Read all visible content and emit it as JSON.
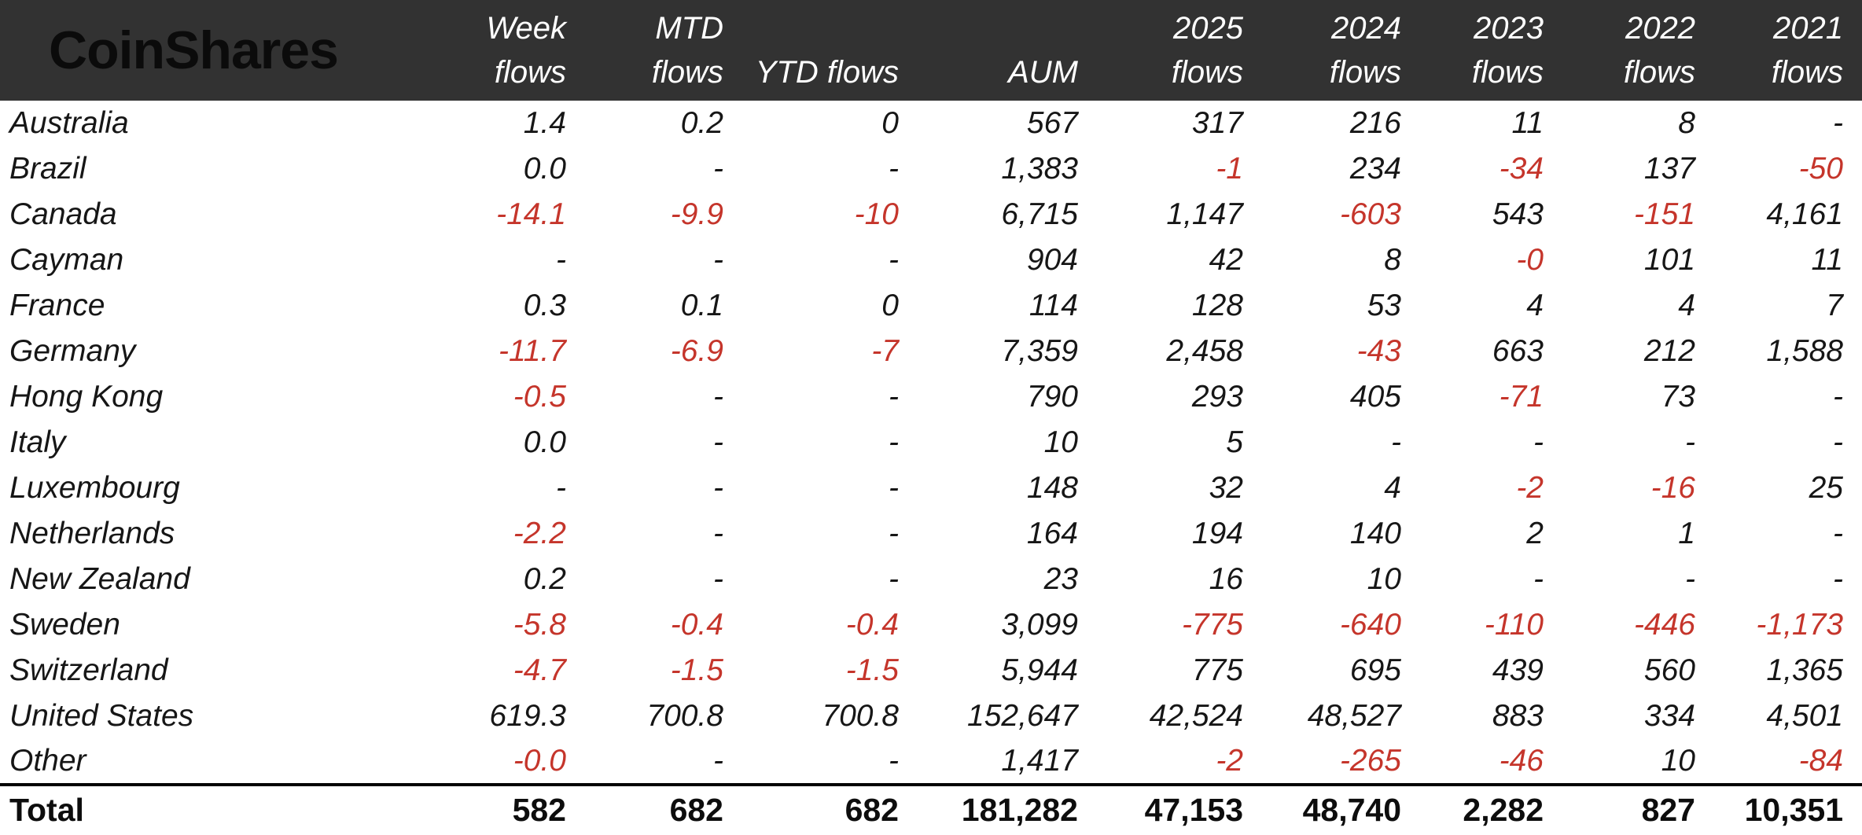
{
  "brand": {
    "logo": "CoinShares"
  },
  "colors": {
    "header_bg": "#323232",
    "negative": "#c5352b",
    "logo_text": "#0b0b0b"
  },
  "chart_data": {
    "type": "table",
    "header_columns": [
      {
        "line1": "Week",
        "line2": "flows"
      },
      {
        "line1": "MTD",
        "line2": "flows"
      },
      {
        "line1": "",
        "line2": "YTD flows"
      },
      {
        "line1": "",
        "line2": "AUM"
      },
      {
        "line1": "2025",
        "line2": "flows"
      },
      {
        "line1": "2024",
        "line2": "flows"
      },
      {
        "line1": "2023",
        "line2": "flows"
      },
      {
        "line1": "2022",
        "line2": "flows"
      },
      {
        "line1": "2021",
        "line2": "flows"
      }
    ],
    "rows": [
      {
        "country": "Australia",
        "values": [
          "1.4",
          "0.2",
          "0",
          "567",
          "317",
          "216",
          "11",
          "8",
          "-"
        ]
      },
      {
        "country": "Brazil",
        "values": [
          "0.0",
          "-",
          "-",
          "1,383",
          "-1",
          "234",
          "-34",
          "137",
          "-50"
        ]
      },
      {
        "country": "Canada",
        "values": [
          "-14.1",
          "-9.9",
          "-10",
          "6,715",
          "1,147",
          "-603",
          "543",
          "-151",
          "4,161"
        ]
      },
      {
        "country": "Cayman",
        "values": [
          "-",
          "-",
          "-",
          "904",
          "42",
          "8",
          "-0",
          "101",
          "11"
        ]
      },
      {
        "country": "France",
        "values": [
          "0.3",
          "0.1",
          "0",
          "114",
          "128",
          "53",
          "4",
          "4",
          "7"
        ]
      },
      {
        "country": "Germany",
        "values": [
          "-11.7",
          "-6.9",
          "-7",
          "7,359",
          "2,458",
          "-43",
          "663",
          "212",
          "1,588"
        ]
      },
      {
        "country": "Hong Kong",
        "values": [
          "-0.5",
          "-",
          "-",
          "790",
          "293",
          "405",
          "-71",
          "73",
          "-"
        ]
      },
      {
        "country": "Italy",
        "values": [
          "0.0",
          "-",
          "-",
          "10",
          "5",
          "-",
          "-",
          "-",
          "-"
        ]
      },
      {
        "country": "Luxembourg",
        "values": [
          "-",
          "-",
          "-",
          "148",
          "32",
          "4",
          "-2",
          "-16",
          "25"
        ]
      },
      {
        "country": "Netherlands",
        "values": [
          "-2.2",
          "-",
          "-",
          "164",
          "194",
          "140",
          "2",
          "1",
          "-"
        ]
      },
      {
        "country": "New Zealand",
        "values": [
          "0.2",
          "-",
          "-",
          "23",
          "16",
          "10",
          "-",
          "-",
          "-"
        ]
      },
      {
        "country": "Sweden",
        "values": [
          "-5.8",
          "-0.4",
          "-0.4",
          "3,099",
          "-775",
          "-640",
          "-110",
          "-446",
          "-1,173"
        ]
      },
      {
        "country": "Switzerland",
        "values": [
          "-4.7",
          "-1.5",
          "-1.5",
          "5,944",
          "775",
          "695",
          "439",
          "560",
          "1,365"
        ]
      },
      {
        "country": "United States",
        "values": [
          "619.3",
          "700.8",
          "700.8",
          "152,647",
          "42,524",
          "48,527",
          "883",
          "334",
          "4,501"
        ]
      },
      {
        "country": "Other",
        "values": [
          "-0.0",
          "-",
          "-",
          "1,417",
          "-2",
          "-265",
          "-46",
          "10",
          "-84"
        ]
      }
    ],
    "total": {
      "label": "Total",
      "values": [
        "582",
        "682",
        "682",
        "181,282",
        "47,153",
        "48,740",
        "2,282",
        "827",
        "10,351"
      ]
    }
  }
}
